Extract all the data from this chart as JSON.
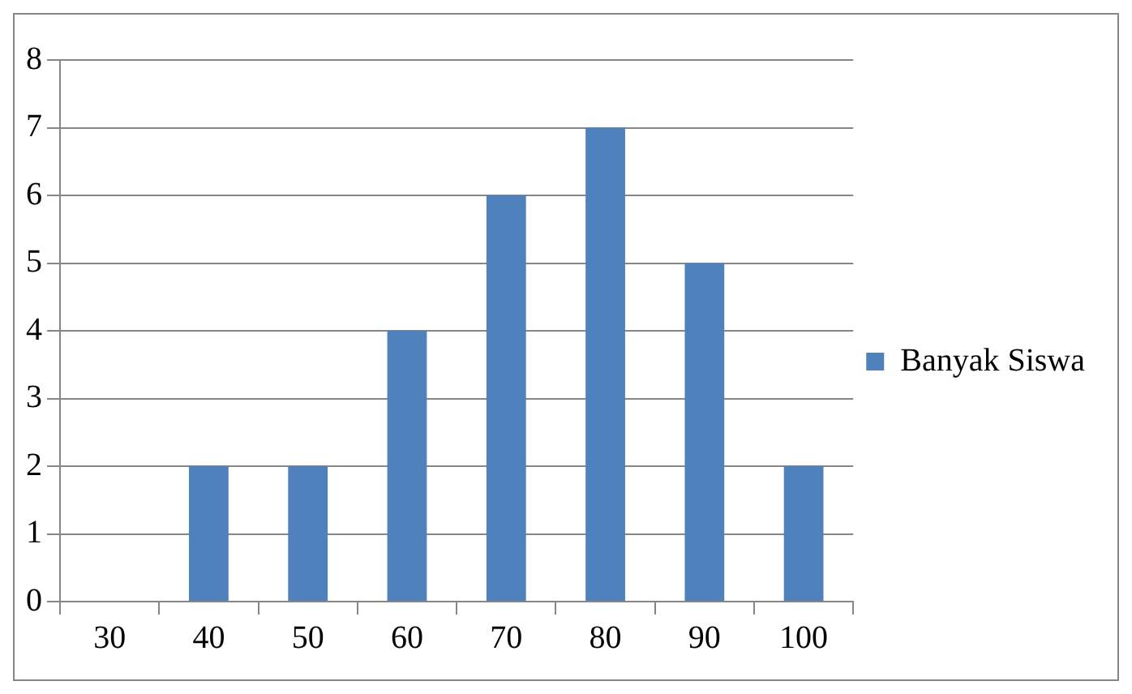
{
  "chart_data": {
    "type": "bar",
    "categories": [
      "30",
      "40",
      "50",
      "60",
      "70",
      "80",
      "90",
      "100"
    ],
    "series": [
      {
        "name": "Banyak Siswa",
        "color": "#4f81bd",
        "values": [
          0,
          2,
          2,
          4,
          6,
          7,
          5,
          2
        ]
      }
    ],
    "ylim": [
      0,
      8
    ],
    "yticks": [
      0,
      1,
      2,
      3,
      4,
      5,
      6,
      7,
      8
    ],
    "grid": "y",
    "legend": "right"
  }
}
